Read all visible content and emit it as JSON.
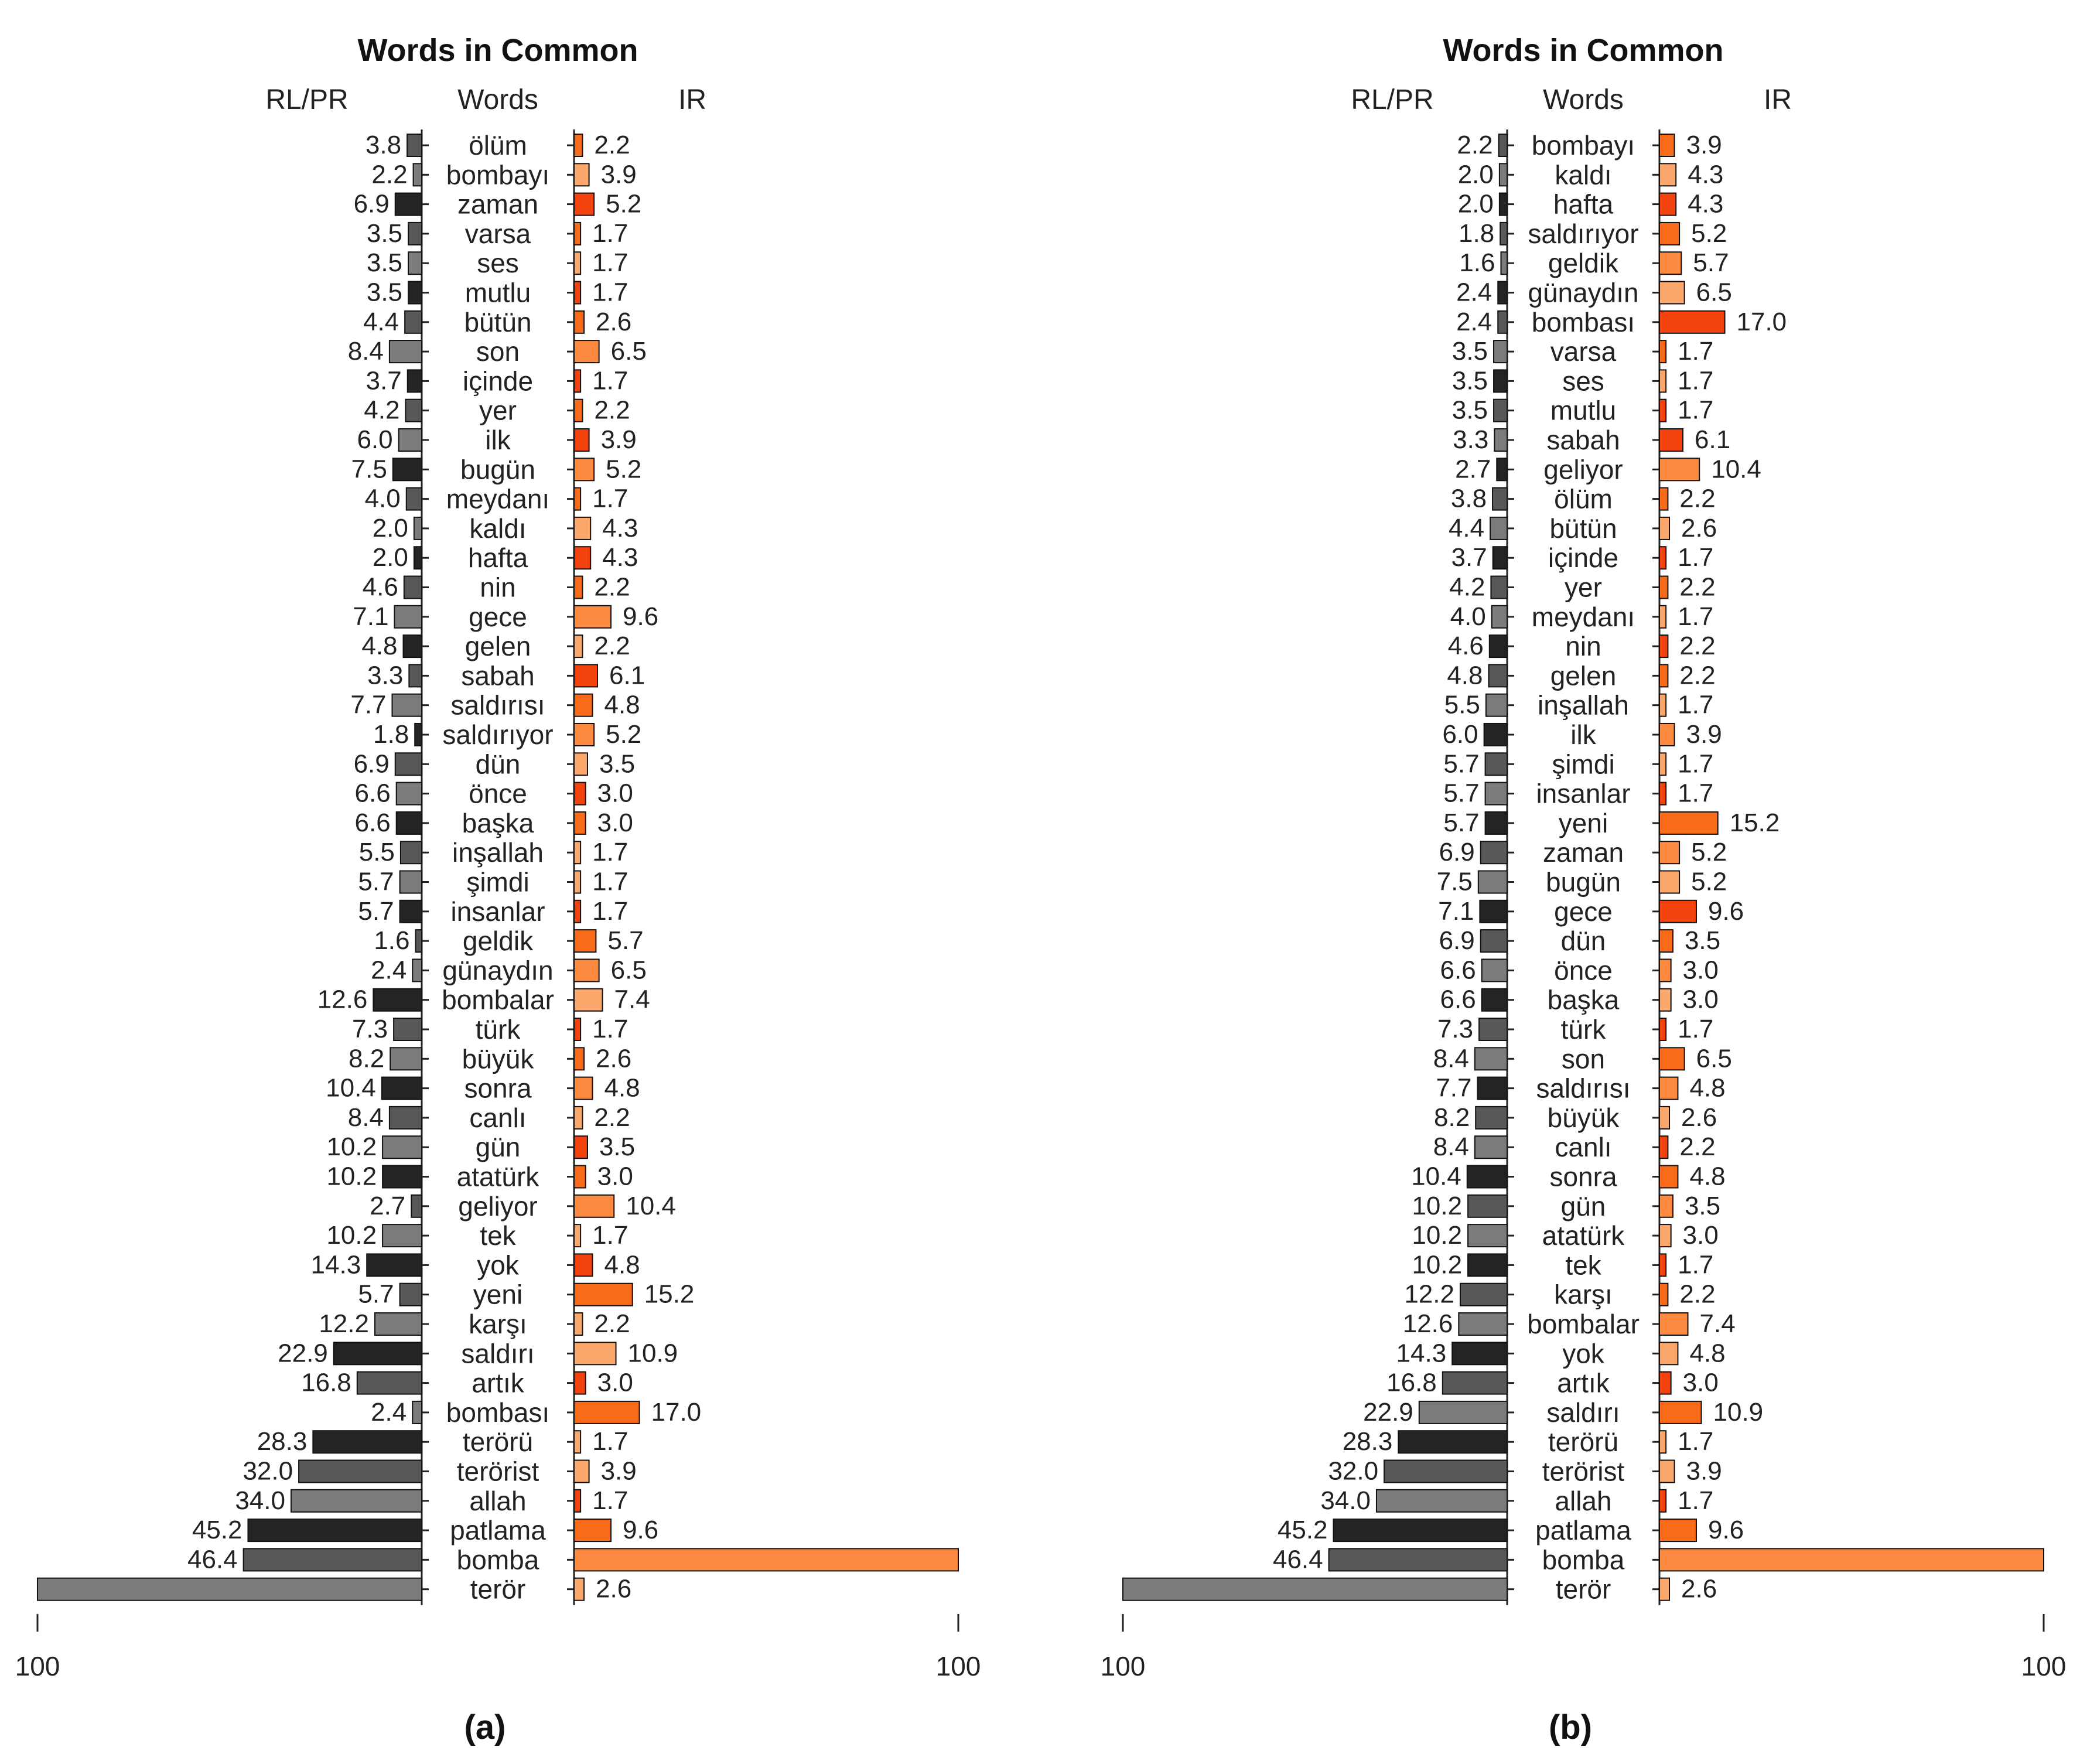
{
  "chart_data": [
    {
      "type": "bar",
      "title": "Words in Common",
      "left_header": "RL/PR",
      "center_header": "Words",
      "right_header": "IR",
      "left_axis_label": "100",
      "right_axis_label": "100",
      "panel_label": "(a)",
      "xlim": [
        0,
        100
      ],
      "words": [
        "ölüm",
        "bombayı",
        "zaman",
        "varsa",
        "ses",
        "mutlu",
        "bütün",
        "son",
        "içinde",
        "yer",
        "ilk",
        "bugün",
        "meydanı",
        "kaldı",
        "hafta",
        "nin",
        "gece",
        "gelen",
        "sabah",
        "saldırısı",
        "saldırıyor",
        "dün",
        "önce",
        "başka",
        "inşallah",
        "şimdi",
        "insanlar",
        "geldik",
        "günaydın",
        "bombalar",
        "türk",
        "büyük",
        "sonra",
        "canlı",
        "gün",
        "atatürk",
        "geliyor",
        "tek",
        "yok",
        "yeni",
        "karşı",
        "saldırı",
        "artık",
        "bombası",
        "terörü",
        "terörist",
        "allah",
        "patlama",
        "bomba",
        "terör"
      ],
      "left_labels": [
        "3.8",
        "2.2",
        "6.9",
        "3.5",
        "3.5",
        "3.5",
        "4.4",
        "8.4",
        "3.7",
        "4.2",
        "6.0",
        "7.5",
        "4.0",
        "2.0",
        "2.0",
        "4.6",
        "7.1",
        "4.8",
        "3.3",
        "7.7",
        "1.8",
        "6.9",
        "6.6",
        "6.6",
        "5.5",
        "5.7",
        "5.7",
        "1.6",
        "2.4",
        "12.6",
        "7.3",
        "8.2",
        "10.4",
        "8.4",
        "10.2",
        "10.2",
        "2.7",
        "10.2",
        "14.3",
        "5.7",
        "12.2",
        "22.9",
        "16.8",
        "2.4",
        "28.3",
        "32.0",
        "34.0",
        "45.2",
        "46.4",
        ""
      ],
      "left_values": [
        3.8,
        2.2,
        6.9,
        3.5,
        3.5,
        3.5,
        4.4,
        8.4,
        3.7,
        4.2,
        6.0,
        7.5,
        4.0,
        2.0,
        2.0,
        4.6,
        7.1,
        4.8,
        3.3,
        7.7,
        1.8,
        6.9,
        6.6,
        6.6,
        5.5,
        5.7,
        5.7,
        1.6,
        2.4,
        12.6,
        7.3,
        8.2,
        10.4,
        8.4,
        10.2,
        10.2,
        2.7,
        10.2,
        14.3,
        5.7,
        12.2,
        22.9,
        16.8,
        2.4,
        28.3,
        32.0,
        34.0,
        45.2,
        46.4,
        100
      ],
      "left_colors": [
        "#585858",
        "#7c7c7c",
        "#242424",
        "#585858",
        "#7c7c7c",
        "#242424",
        "#585858",
        "#7c7c7c",
        "#242424",
        "#585858",
        "#7c7c7c",
        "#242424",
        "#585858",
        "#7c7c7c",
        "#242424",
        "#585858",
        "#7c7c7c",
        "#242424",
        "#585858",
        "#7c7c7c",
        "#242424",
        "#585858",
        "#7c7c7c",
        "#242424",
        "#585858",
        "#7c7c7c",
        "#242424",
        "#585858",
        "#7c7c7c",
        "#242424",
        "#585858",
        "#7c7c7c",
        "#242424",
        "#585858",
        "#7c7c7c",
        "#242424",
        "#585858",
        "#7c7c7c",
        "#242424",
        "#585858",
        "#7c7c7c",
        "#242424",
        "#585858",
        "#7c7c7c",
        "#242424",
        "#585858",
        "#7c7c7c",
        "#242424",
        "#585858",
        "#7c7c7c"
      ],
      "right_labels": [
        "2.2",
        "3.9",
        "5.2",
        "1.7",
        "1.7",
        "1.7",
        "2.6",
        "6.5",
        "1.7",
        "2.2",
        "3.9",
        "5.2",
        "1.7",
        "4.3",
        "4.3",
        "2.2",
        "9.6",
        "2.2",
        "6.1",
        "4.8",
        "5.2",
        "3.5",
        "3.0",
        "3.0",
        "1.7",
        "1.7",
        "1.7",
        "5.7",
        "6.5",
        "7.4",
        "1.7",
        "2.6",
        "4.8",
        "2.2",
        "3.5",
        "3.0",
        "10.4",
        "1.7",
        "4.8",
        "15.2",
        "2.2",
        "10.9",
        "3.0",
        "17.0",
        "1.7",
        "3.9",
        "1.7",
        "9.6",
        "",
        "2.6"
      ],
      "right_values": [
        2.2,
        3.9,
        5.2,
        1.7,
        1.7,
        1.7,
        2.6,
        6.5,
        1.7,
        2.2,
        3.9,
        5.2,
        1.7,
        4.3,
        4.3,
        2.2,
        9.6,
        2.2,
        6.1,
        4.8,
        5.2,
        3.5,
        3.0,
        3.0,
        1.7,
        1.7,
        1.7,
        5.7,
        6.5,
        7.4,
        1.7,
        2.6,
        4.8,
        2.2,
        3.5,
        3.0,
        10.4,
        1.7,
        4.8,
        15.2,
        2.2,
        10.9,
        3.0,
        17.0,
        1.7,
        3.9,
        1.7,
        9.6,
        100,
        2.6
      ],
      "right_colors": [
        "#f86b18",
        "#fca86c",
        "#f2420d",
        "#f86b18",
        "#fca86c",
        "#f2420d",
        "#f86b18",
        "#fc8a40",
        "#f2420d",
        "#f86b18",
        "#f2420d",
        "#fc8a40",
        "#f86b18",
        "#fca86c",
        "#f2420d",
        "#f86b18",
        "#fc8a40",
        "#fca86c",
        "#f2420d",
        "#f86b18",
        "#fc8a40",
        "#fca86c",
        "#f2420d",
        "#f86b18",
        "#fca86c",
        "#fca86c",
        "#f2420d",
        "#f86b18",
        "#fc8a40",
        "#fca86c",
        "#f2420d",
        "#f86b18",
        "#fc8a40",
        "#fca86c",
        "#f2420d",
        "#f86b18",
        "#fc8a40",
        "#fca86c",
        "#f2420d",
        "#f86b18",
        "#fca86c",
        "#fca86c",
        "#f2420d",
        "#f86b18",
        "#fca86c",
        "#fca86c",
        "#f2420d",
        "#f86b18",
        "#fc8a40",
        "#fca86c"
      ]
    },
    {
      "type": "bar",
      "title": "Words in Common",
      "left_header": "RL/PR",
      "center_header": "Words",
      "right_header": "IR",
      "left_axis_label": "100",
      "right_axis_label": "100",
      "panel_label": "(b)",
      "xlim": [
        0,
        100
      ],
      "words": [
        "bombayı",
        "kaldı",
        "hafta",
        "saldırıyor",
        "geldik",
        "günaydın",
        "bombası",
        "varsa",
        "ses",
        "mutlu",
        "sabah",
        "geliyor",
        "ölüm",
        "bütün",
        "içinde",
        "yer",
        "meydanı",
        "nin",
        "gelen",
        "inşallah",
        "ilk",
        "şimdi",
        "insanlar",
        "yeni",
        "zaman",
        "bugün",
        "gece",
        "dün",
        "önce",
        "başka",
        "türk",
        "son",
        "saldırısı",
        "büyük",
        "canlı",
        "sonra",
        "gün",
        "atatürk",
        "tek",
        "karşı",
        "bombalar",
        "yok",
        "artık",
        "saldırı",
        "terörü",
        "terörist",
        "allah",
        "patlama",
        "bomba",
        "terör"
      ],
      "left_labels": [
        "2.2",
        "2.0",
        "2.0",
        "1.8",
        "1.6",
        "2.4",
        "2.4",
        "3.5",
        "3.5",
        "3.5",
        "3.3",
        "2.7",
        "3.8",
        "4.4",
        "3.7",
        "4.2",
        "4.0",
        "4.6",
        "4.8",
        "5.5",
        "6.0",
        "5.7",
        "5.7",
        "5.7",
        "6.9",
        "7.5",
        "7.1",
        "6.9",
        "6.6",
        "6.6",
        "7.3",
        "8.4",
        "7.7",
        "8.2",
        "8.4",
        "10.4",
        "10.2",
        "10.2",
        "10.2",
        "12.2",
        "12.6",
        "14.3",
        "16.8",
        "22.9",
        "28.3",
        "32.0",
        "34.0",
        "45.2",
        "46.4",
        ""
      ],
      "left_values": [
        2.2,
        2.0,
        2.0,
        1.8,
        1.6,
        2.4,
        2.4,
        3.5,
        3.5,
        3.5,
        3.3,
        2.7,
        3.8,
        4.4,
        3.7,
        4.2,
        4.0,
        4.6,
        4.8,
        5.5,
        6.0,
        5.7,
        5.7,
        5.7,
        6.9,
        7.5,
        7.1,
        6.9,
        6.6,
        6.6,
        7.3,
        8.4,
        7.7,
        8.2,
        8.4,
        10.4,
        10.2,
        10.2,
        10.2,
        12.2,
        12.6,
        14.3,
        16.8,
        22.9,
        28.3,
        32.0,
        34.0,
        45.2,
        46.4,
        100
      ],
      "left_colors": [
        "#585858",
        "#7c7c7c",
        "#242424",
        "#585858",
        "#7c7c7c",
        "#242424",
        "#585858",
        "#7c7c7c",
        "#242424",
        "#585858",
        "#7c7c7c",
        "#242424",
        "#585858",
        "#7c7c7c",
        "#242424",
        "#585858",
        "#7c7c7c",
        "#242424",
        "#585858",
        "#7c7c7c",
        "#242424",
        "#585858",
        "#7c7c7c",
        "#242424",
        "#585858",
        "#7c7c7c",
        "#242424",
        "#585858",
        "#7c7c7c",
        "#242424",
        "#585858",
        "#7c7c7c",
        "#242424",
        "#585858",
        "#7c7c7c",
        "#242424",
        "#585858",
        "#7c7c7c",
        "#242424",
        "#585858",
        "#7c7c7c",
        "#242424",
        "#585858",
        "#7c7c7c",
        "#242424",
        "#585858",
        "#7c7c7c",
        "#242424",
        "#585858",
        "#7c7c7c"
      ],
      "right_labels": [
        "3.9",
        "4.3",
        "4.3",
        "5.2",
        "5.7",
        "6.5",
        "17.0",
        "1.7",
        "1.7",
        "1.7",
        "6.1",
        "10.4",
        "2.2",
        "2.6",
        "1.7",
        "2.2",
        "1.7",
        "2.2",
        "2.2",
        "1.7",
        "3.9",
        "1.7",
        "1.7",
        "15.2",
        "5.2",
        "5.2",
        "9.6",
        "3.5",
        "3.0",
        "3.0",
        "1.7",
        "6.5",
        "4.8",
        "2.6",
        "2.2",
        "4.8",
        "3.5",
        "3.0",
        "1.7",
        "2.2",
        "7.4",
        "4.8",
        "3.0",
        "10.9",
        "1.7",
        "3.9",
        "1.7",
        "9.6",
        "",
        "2.6"
      ],
      "right_values": [
        3.9,
        4.3,
        4.3,
        5.2,
        5.7,
        6.5,
        17.0,
        1.7,
        1.7,
        1.7,
        6.1,
        10.4,
        2.2,
        2.6,
        1.7,
        2.2,
        1.7,
        2.2,
        2.2,
        1.7,
        3.9,
        1.7,
        1.7,
        15.2,
        5.2,
        5.2,
        9.6,
        3.5,
        3.0,
        3.0,
        1.7,
        6.5,
        4.8,
        2.6,
        2.2,
        4.8,
        3.5,
        3.0,
        1.7,
        2.2,
        7.4,
        4.8,
        3.0,
        10.9,
        1.7,
        3.9,
        1.7,
        9.6,
        100,
        2.6
      ],
      "right_colors": [
        "#f86b18",
        "#fca86c",
        "#f2420d",
        "#f86b18",
        "#fc8a40",
        "#fca86c",
        "#f2420d",
        "#f86b18",
        "#fca86c",
        "#f2420d",
        "#f2420d",
        "#fc8a40",
        "#f86b18",
        "#fca86c",
        "#f2420d",
        "#f86b18",
        "#fca86c",
        "#f2420d",
        "#f86b18",
        "#fca86c",
        "#fc8a40",
        "#fca86c",
        "#f2420d",
        "#f86b18",
        "#fc8a40",
        "#fca86c",
        "#f2420d",
        "#f86b18",
        "#fc8a40",
        "#fca86c",
        "#f2420d",
        "#f86b18",
        "#fc8a40",
        "#fca86c",
        "#f2420d",
        "#f86b18",
        "#fc8a40",
        "#fca86c",
        "#f2420d",
        "#f86b18",
        "#fc8a40",
        "#fca86c",
        "#f2420d",
        "#f86b18",
        "#fca86c",
        "#fca86c",
        "#f2420d",
        "#f86b18",
        "#fc8a40",
        "#fca86c"
      ]
    }
  ]
}
